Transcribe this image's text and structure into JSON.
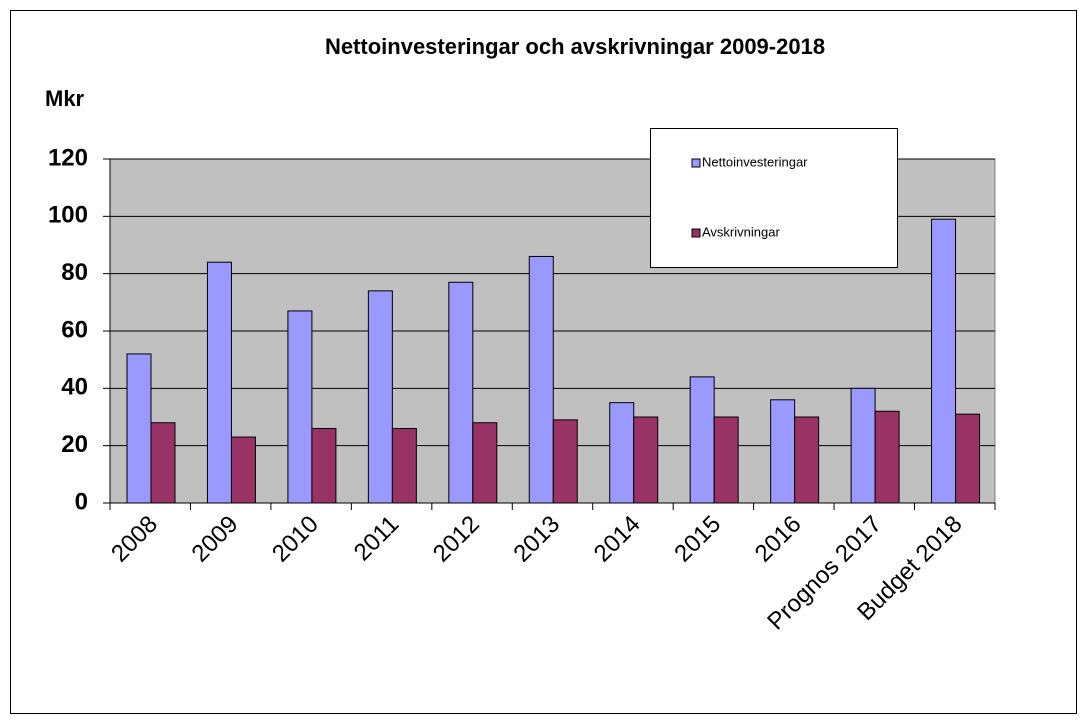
{
  "chart_data": {
    "type": "bar",
    "title": "Nettoinvesteringar och avskrivningar 2009-2018",
    "y_label": "Mkr",
    "categories": [
      "2008",
      "2009",
      "2010",
      "2011",
      "2012",
      "2013",
      "2014",
      "2015",
      "2016",
      "Prognos 2017",
      "Budget 2018"
    ],
    "series": [
      {
        "name": "Nettoinvesteringar",
        "color": "#9999ff",
        "values": [
          52,
          84,
          67,
          74,
          77,
          86,
          35,
          44,
          36,
          40,
          99
        ]
      },
      {
        "name": "Avskrivningar",
        "color": "#993366",
        "values": [
          28,
          23,
          26,
          26,
          28,
          29,
          30,
          30,
          30,
          32,
          31
        ]
      }
    ],
    "ylim": [
      0,
      120
    ],
    "yticks": [
      0,
      20,
      40,
      60,
      80,
      100,
      120
    ],
    "grid": true,
    "legend": "top-right"
  }
}
